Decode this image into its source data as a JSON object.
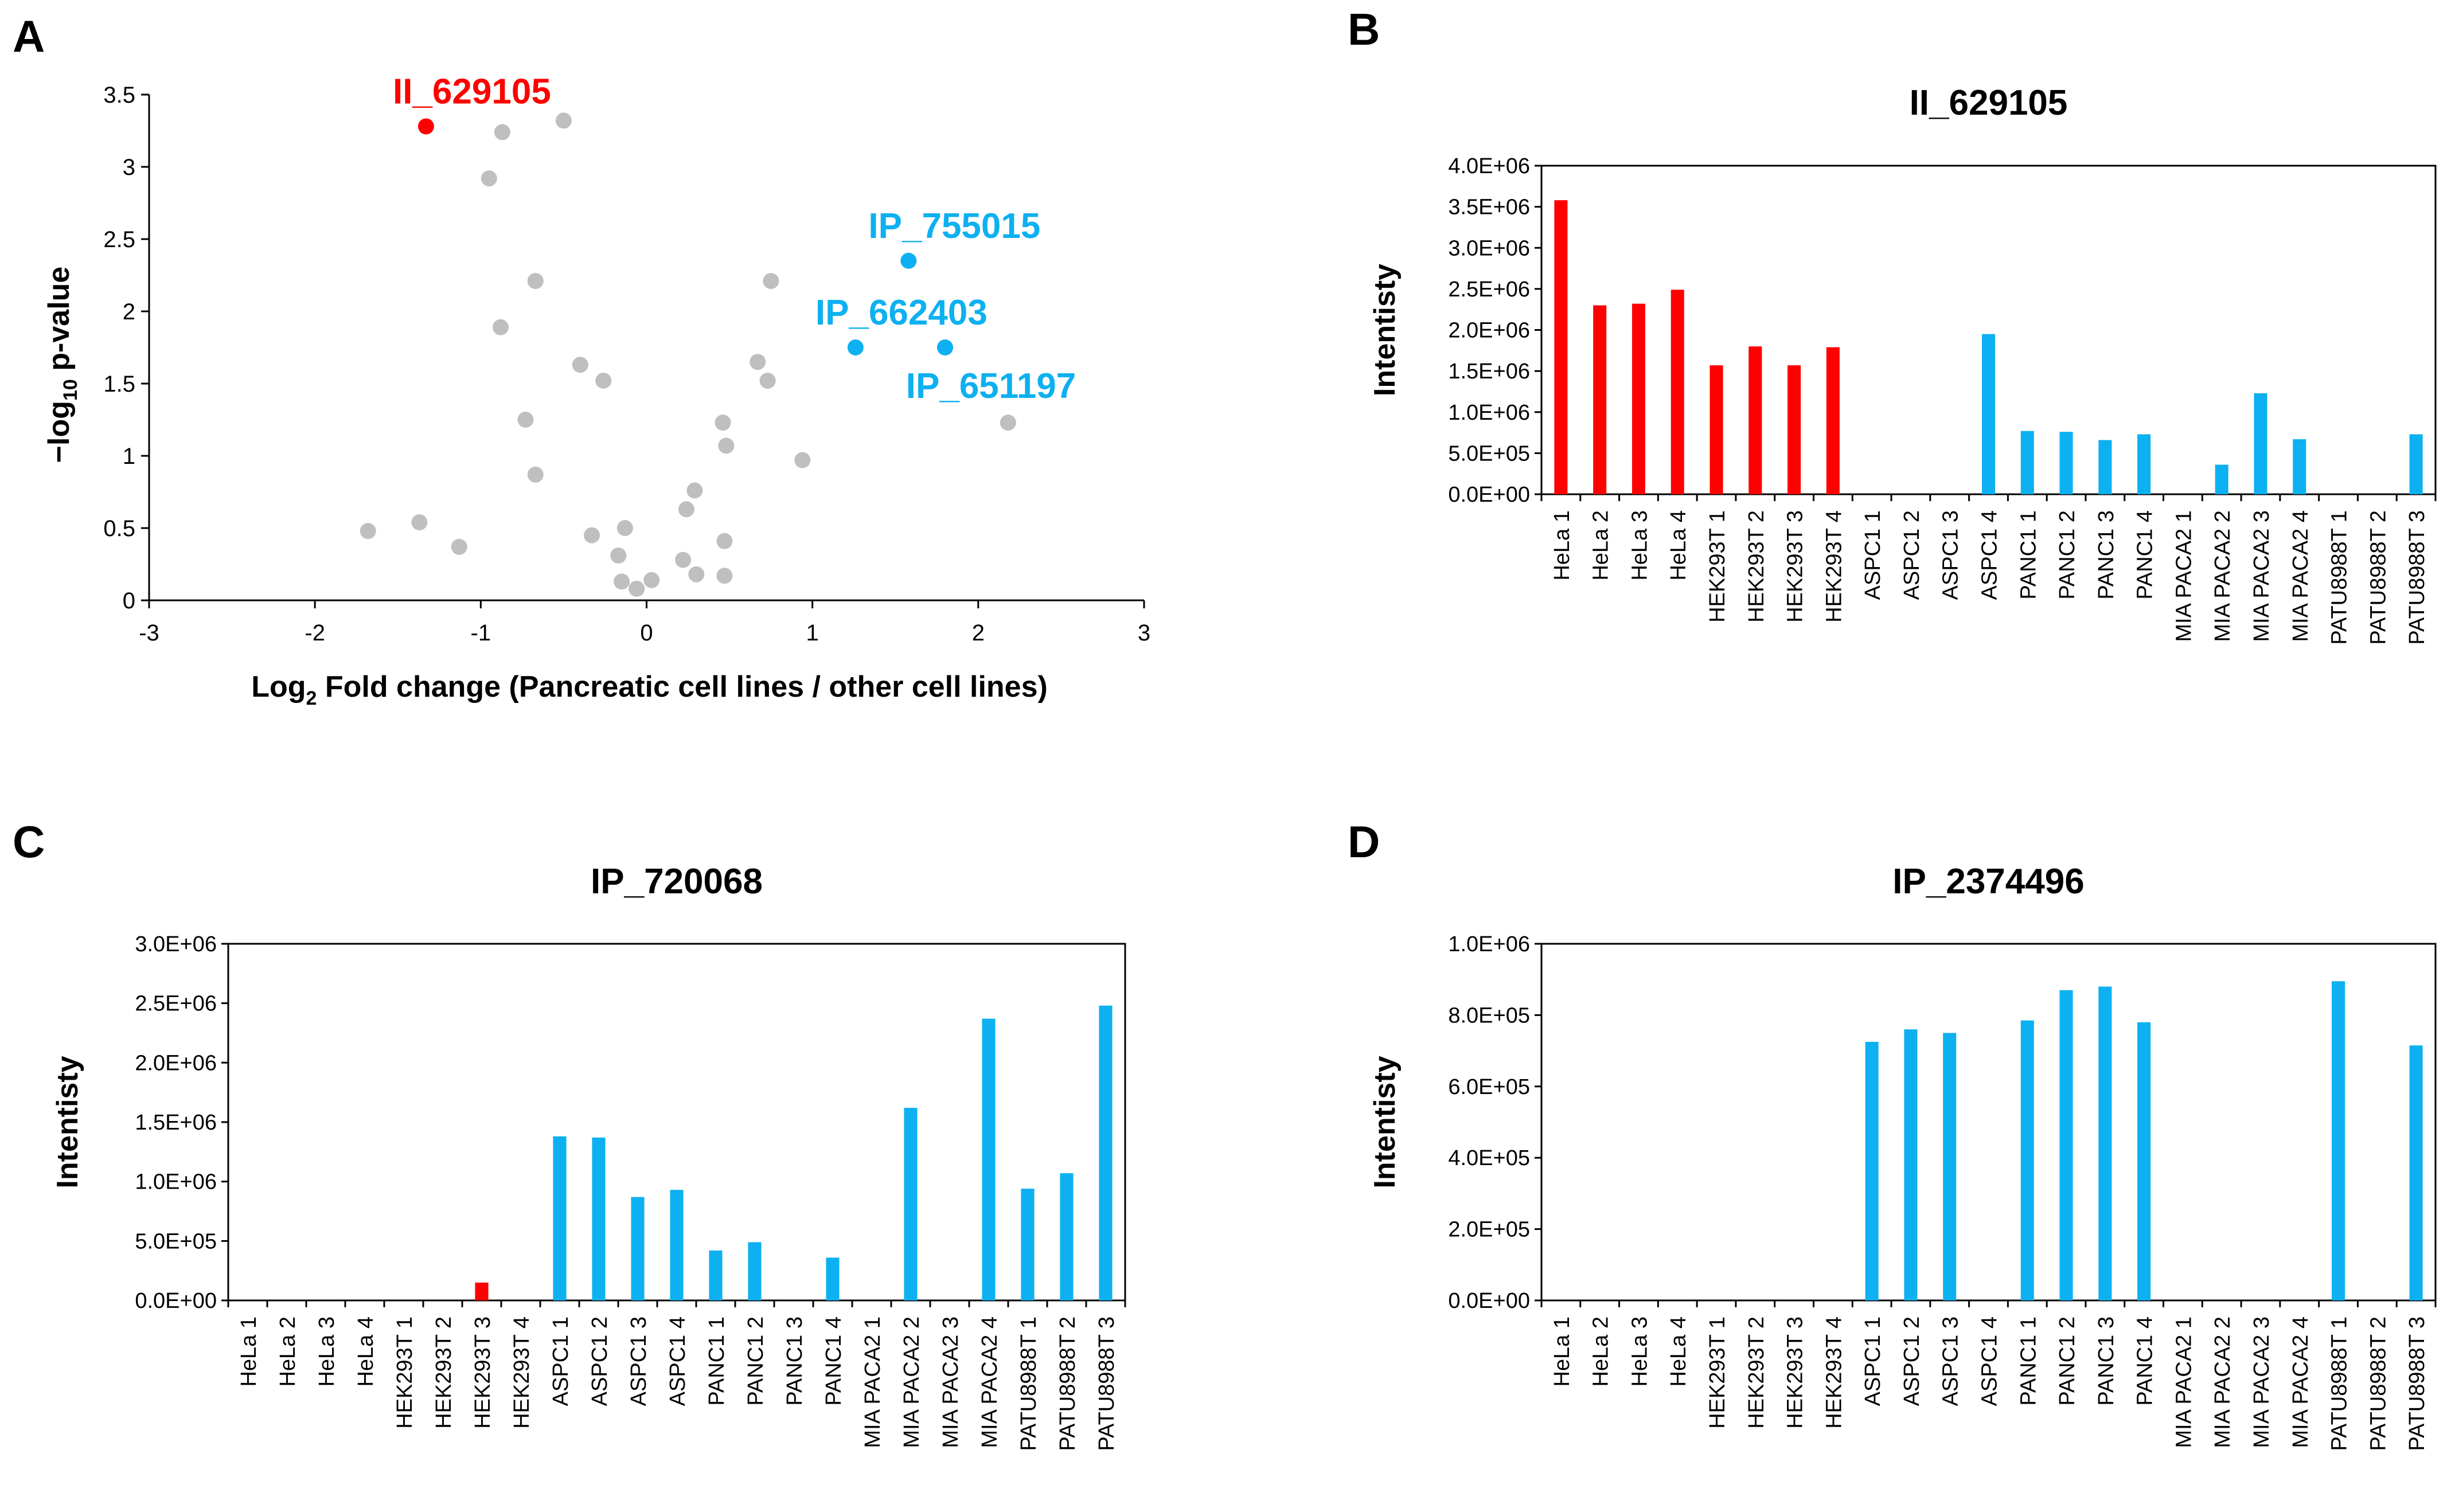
{
  "panel_letters": [
    "A",
    "B",
    "C",
    "D"
  ],
  "colors": {
    "red": "#ff0000",
    "blue": "#0db0f0",
    "gray": "#bfbfbf",
    "axis": "#000000"
  },
  "chart_data": [
    {
      "type": "scatter",
      "title": "",
      "xlabel_pre": "Log",
      "xlabel_sub": "2",
      "xlabel_post": " Fold change (Pancreatic cell lines / other cell lines)",
      "ylabel_pre": "−log",
      "ylabel_sub": "10",
      "ylabel_post": " p-value",
      "xlim": [
        -3,
        3
      ],
      "ylim": [
        0,
        3.5
      ],
      "xticks": [
        -3,
        -2,
        -1,
        0,
        1,
        2,
        3
      ],
      "yticks": [
        0,
        0.5,
        1,
        1.5,
        2,
        2.5,
        3,
        3.5
      ],
      "xtick_labels": [
        "-3",
        "-2",
        "-1",
        "0",
        "1",
        "2",
        "3"
      ],
      "ytick_labels": [
        "0",
        "0.5",
        "1",
        "1.5",
        "2",
        "2.5",
        "3",
        "3.5"
      ],
      "points_gray": [
        [
          -0.5,
          3.32
        ],
        [
          -0.87,
          3.24
        ],
        [
          -0.95,
          2.92
        ],
        [
          -0.67,
          2.21
        ],
        [
          -0.88,
          1.89
        ],
        [
          -0.4,
          1.63
        ],
        [
          -0.26,
          1.52
        ],
        [
          -0.73,
          1.25
        ],
        [
          -0.67,
          0.87
        ],
        [
          -1.68,
          0.48
        ],
        [
          -1.37,
          0.54
        ],
        [
          -1.13,
          0.37
        ],
        [
          -0.33,
          0.45
        ],
        [
          -0.17,
          0.31
        ],
        [
          -0.13,
          0.5
        ],
        [
          -0.15,
          0.13
        ],
        [
          -0.06,
          0.08
        ],
        [
          0.03,
          0.14
        ],
        [
          0.22,
          0.28
        ],
        [
          0.3,
          0.18
        ],
        [
          0.24,
          0.63
        ],
        [
          0.29,
          0.76
        ],
        [
          0.46,
          1.23
        ],
        [
          0.48,
          1.07
        ],
        [
          0.47,
          0.41
        ],
        [
          0.47,
          0.17
        ],
        [
          0.67,
          1.65
        ],
        [
          0.75,
          2.21
        ],
        [
          0.73,
          1.52
        ],
        [
          0.94,
          0.97
        ],
        [
          2.18,
          1.23
        ]
      ],
      "points_highlight": [
        {
          "label": "II_629105",
          "x": -1.33,
          "y": 3.28,
          "color": "red",
          "anchor": "above"
        },
        {
          "label": "IP_755015",
          "x": 1.58,
          "y": 2.35,
          "color": "blue",
          "anchor": "above"
        },
        {
          "label": "IP_662403",
          "x": 1.26,
          "y": 1.75,
          "color": "blue",
          "anchor": "above"
        },
        {
          "label": "IP_651197",
          "x": 1.8,
          "y": 1.75,
          "color": "blue",
          "anchor": "below"
        }
      ]
    },
    {
      "type": "bar",
      "title": "II_629105",
      "ylabel": "Intentisty",
      "ylim": [
        0,
        4000000
      ],
      "yticks": [
        0,
        500000,
        1000000,
        1500000,
        2000000,
        2500000,
        3000000,
        3500000,
        4000000
      ],
      "ytick_labels": [
        "0.0E+00",
        "5.0E+05",
        "1.0E+06",
        "1.5E+06",
        "2.0E+06",
        "2.5E+06",
        "3.0E+06",
        "3.5E+06",
        "4.0E+06"
      ],
      "categories": [
        "HeLa 1",
        "HeLa 2",
        "HeLa 3",
        "HeLa 4",
        "HEK293T 1",
        "HEK293T 2",
        "HEK293T 3",
        "HEK293T 4",
        "ASPC1 1",
        "ASPC1 2",
        "ASPC1 3",
        "ASPC1 4",
        "PANC1 1",
        "PANC1 2",
        "PANC1 3",
        "PANC1 4",
        "MIA PACA2 1",
        "MIA PACA2 2",
        "MIA PACA2 3",
        "MIA PACA2 4",
        "PATU8988T 1",
        "PATU8988T 2",
        "PATU8988T 3"
      ],
      "values": [
        3580000,
        2300000,
        2320000,
        2490000,
        1570000,
        1800000,
        1570000,
        1790000,
        0,
        0,
        0,
        1950000,
        770000,
        760000,
        660000,
        730000,
        0,
        360000,
        1230000,
        670000,
        0,
        0,
        730000
      ],
      "bar_colors": [
        "red",
        "red",
        "red",
        "red",
        "red",
        "red",
        "red",
        "red",
        "blue",
        "blue",
        "blue",
        "blue",
        "blue",
        "blue",
        "blue",
        "blue",
        "blue",
        "blue",
        "blue",
        "blue",
        "blue",
        "blue",
        "blue"
      ]
    },
    {
      "type": "bar",
      "title": "IP_720068",
      "ylabel": "Intentisty",
      "ylim": [
        0,
        3000000
      ],
      "yticks": [
        0,
        500000,
        1000000,
        1500000,
        2000000,
        2500000,
        3000000
      ],
      "ytick_labels": [
        "0.0E+00",
        "5.0E+05",
        "1.0E+06",
        "1.5E+06",
        "2.0E+06",
        "2.5E+06",
        "3.0E+06"
      ],
      "categories": [
        "HeLa 1",
        "HeLa 2",
        "HeLa 3",
        "HeLa 4",
        "HEK293T 1",
        "HEK293T 2",
        "HEK293T 3",
        "HEK293T 4",
        "ASPC1 1",
        "ASPC1 2",
        "ASPC1 3",
        "ASPC1 4",
        "PANC1 1",
        "PANC1 2",
        "PANC1 3",
        "PANC1 4",
        "MIA PACA2 1",
        "MIA PACA2 2",
        "MIA PACA2 3",
        "MIA PACA2 4",
        "PATU8988T 1",
        "PATU8988T 2",
        "PATU8988T 3"
      ],
      "values": [
        0,
        0,
        0,
        0,
        0,
        0,
        150000,
        0,
        1380000,
        1370000,
        870000,
        930000,
        420000,
        490000,
        0,
        360000,
        0,
        1620000,
        0,
        2370000,
        940000,
        1070000,
        2480000
      ],
      "bar_colors": [
        "red",
        "red",
        "red",
        "red",
        "red",
        "red",
        "red",
        "red",
        "blue",
        "blue",
        "blue",
        "blue",
        "blue",
        "blue",
        "blue",
        "blue",
        "blue",
        "blue",
        "blue",
        "blue",
        "blue",
        "blue",
        "blue"
      ]
    },
    {
      "type": "bar",
      "title": "IP_2374496",
      "ylabel": "Intentisty",
      "ylim": [
        0,
        1000000
      ],
      "yticks": [
        0,
        200000,
        400000,
        600000,
        800000,
        1000000
      ],
      "ytick_labels": [
        "0.0E+00",
        "2.0E+05",
        "4.0E+05",
        "6.0E+05",
        "8.0E+05",
        "1.0E+06"
      ],
      "categories": [
        "HeLa 1",
        "HeLa 2",
        "HeLa 3",
        "HeLa 4",
        "HEK293T 1",
        "HEK293T 2",
        "HEK293T 3",
        "HEK293T 4",
        "ASPC1 1",
        "ASPC1 2",
        "ASPC1 3",
        "ASPC1 4",
        "PANC1 1",
        "PANC1 2",
        "PANC1 3",
        "PANC1 4",
        "MIA PACA2 1",
        "MIA PACA2 2",
        "MIA PACA2 3",
        "MIA PACA2 4",
        "PATU8988T 1",
        "PATU8988T 2",
        "PATU8988T 3"
      ],
      "values": [
        0,
        0,
        0,
        0,
        0,
        0,
        0,
        0,
        725000,
        760000,
        750000,
        0,
        785000,
        870000,
        880000,
        780000,
        0,
        0,
        0,
        0,
        895000,
        0,
        715000
      ],
      "bar_colors": [
        "red",
        "red",
        "red",
        "red",
        "red",
        "red",
        "red",
        "red",
        "blue",
        "blue",
        "blue",
        "blue",
        "blue",
        "blue",
        "blue",
        "blue",
        "blue",
        "blue",
        "blue",
        "blue",
        "blue",
        "blue",
        "blue"
      ]
    }
  ]
}
